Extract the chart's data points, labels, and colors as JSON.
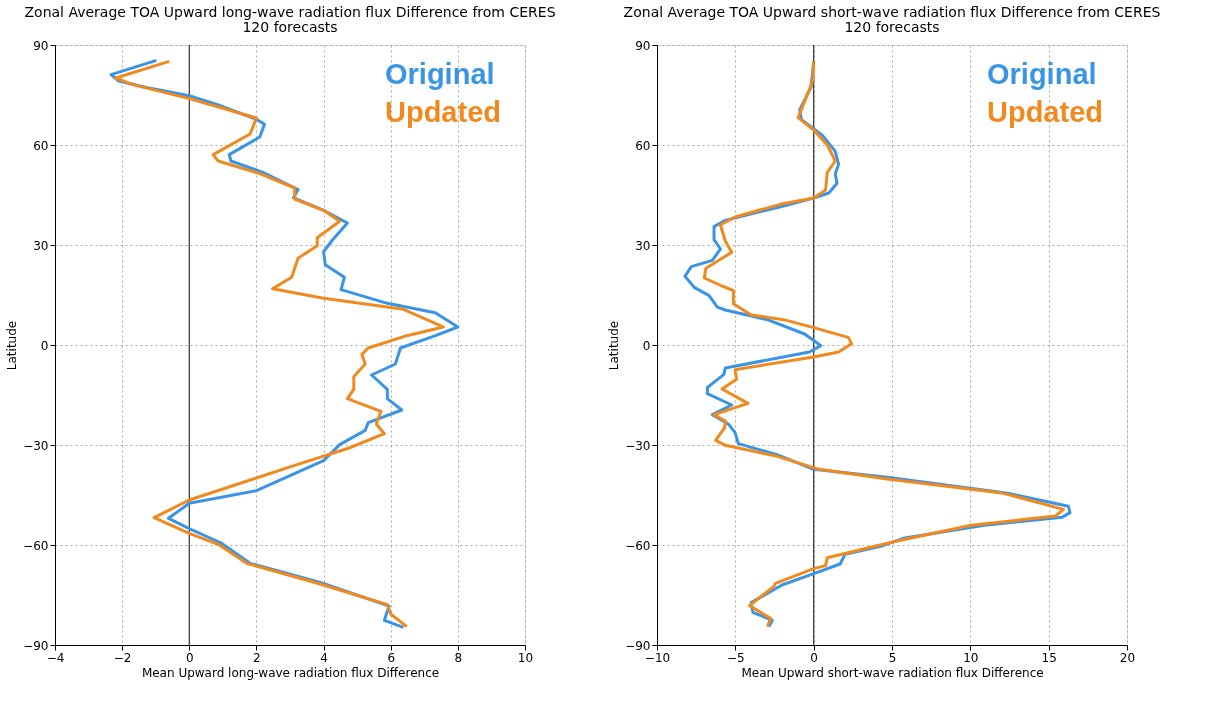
{
  "chart_data": [
    {
      "type": "line",
      "title": "Zonal Average TOA Upward long-wave radiation flux Difference from CERES",
      "subtitle": "120 forecasts",
      "xlabel": "Mean Upward long-wave radiation flux Difference",
      "ylabel": "Latitude",
      "orientation": "horizontal",
      "xlim": [
        -4,
        10
      ],
      "xticks": [
        -4,
        -2,
        0,
        2,
        4,
        6,
        8,
        10
      ],
      "ylim": [
        -90,
        90
      ],
      "yticks": [
        -90,
        -60,
        -30,
        0,
        30,
        60,
        90
      ],
      "grid": true,
      "legend": "top right",
      "marker": "none",
      "line_style": "solid",
      "ref_lines": [
        {
          "axis": "x",
          "value": 0,
          "color": "#333333"
        }
      ],
      "series": [
        {
          "name": "Original",
          "color": "#3a94e6",
          "x": [
            85.4,
            81.1,
            79.2,
            77.2,
            74.8,
            72,
            67.7,
            66.2,
            62.4,
            57.1,
            55.2,
            51.8,
            46.6,
            44.2,
            40.4,
            36.6,
            31.8,
            28,
            24.1,
            20.3,
            16.6,
            12.5,
            9.7,
            5.4,
            2.8,
            -0.9,
            -5.7,
            -9,
            -13.3,
            -16.1,
            -19.5,
            -23.3,
            -25.6,
            -29.9,
            -34.7,
            -43.7,
            -47.5,
            -52,
            -55.1,
            -59.4,
            -65.5,
            -71.2,
            -78.3,
            -82.6,
            -84.7
          ],
          "values": [
            -0.98,
            -2.33,
            -2.1,
            -1.24,
            0,
            0.86,
            2.0,
            2.24,
            2.1,
            1.19,
            1.24,
            2.19,
            3.24,
            3.1,
            4.0,
            4.71,
            4.29,
            4.0,
            4.05,
            4.62,
            4.52,
            5.9,
            7.33,
            8.0,
            7.33,
            6.29,
            6.14,
            5.43,
            5.9,
            5.9,
            6.33,
            5.33,
            5.24,
            4.48,
            4.0,
            2.0,
            0,
            -0.62,
            0,
            0.95,
            1.81,
            3.9,
            5.95,
            5.81,
            6.38
          ]
        },
        {
          "name": "Updated",
          "color": "#f08a1e",
          "x": [
            85.1,
            80.1,
            78.2,
            73.9,
            68.1,
            63.3,
            57.1,
            55.2,
            51.4,
            47.1,
            43.8,
            40.4,
            37.1,
            32.2,
            29.8,
            26,
            20.3,
            16.9,
            14,
            10.7,
            5.4,
            2.8,
            -0.9,
            -2.8,
            -5.7,
            -9.5,
            -13.3,
            -16.1,
            -19.9,
            -23.7,
            -26.6,
            -30.9,
            -36.1,
            -39.9,
            -46.5,
            -51.8,
            -56.5,
            -59.8,
            -65.5,
            -71.7,
            -77.9,
            -80.7,
            -84.5
          ],
          "values": [
            -0.6,
            -2.19,
            -1.71,
            0,
            2.0,
            1.81,
            0.71,
            0.86,
            2.1,
            3.14,
            3.14,
            4.0,
            4.48,
            3.81,
            3.81,
            3.24,
            3.05,
            2.48,
            4.0,
            6.38,
            7.57,
            6.48,
            5.33,
            5.14,
            5.24,
            4.9,
            4.9,
            4.71,
            5.71,
            5.57,
            5.81,
            4.76,
            3.14,
            2.0,
            0,
            -1.05,
            0,
            0.86,
            1.71,
            3.9,
            5.9,
            6.0,
            6.48
          ]
        }
      ]
    },
    {
      "type": "line",
      "title": "Zonal Average TOA Upward short-wave radiation flux Difference from CERES",
      "subtitle": "120 forecasts",
      "xlabel": "Mean Upward short-wave radiation flux Difference",
      "ylabel": "Latitude",
      "orientation": "horizontal",
      "xlim": [
        -10,
        20
      ],
      "xticks": [
        -10,
        -5,
        0,
        5,
        10,
        15,
        20
      ],
      "ylim": [
        -90,
        90
      ],
      "yticks": [
        -90,
        -60,
        -30,
        0,
        30,
        60,
        90
      ],
      "grid": true,
      "legend": "top right",
      "marker": "none",
      "line_style": "solid",
      "ref_lines": [
        {
          "axis": "x",
          "value": 0,
          "color": "#333333"
        }
      ],
      "series": [
        {
          "name": "Original",
          "color": "#3a94e6",
          "x": [
            85,
            77.3,
            70.6,
            67.7,
            62.9,
            58.1,
            54.2,
            51.3,
            48.5,
            45.6,
            44.1,
            41.7,
            37.4,
            35.5,
            31.6,
            28.8,
            25.4,
            23.5,
            20.6,
            17.2,
            14.8,
            11.4,
            10.5,
            7.6,
            3.3,
            0.9,
            -0.2,
            -2.1,
            -6.9,
            -8.9,
            -12.7,
            -14.6,
            -18,
            -20.9,
            -23.8,
            -26.2,
            -29.6,
            -32.9,
            -37.3,
            -39.7,
            -44.5,
            -48.4,
            -50.3,
            -51.7,
            -54.1,
            -58,
            -60.4,
            -62.8,
            -65.7,
            -68.6,
            -72,
            -77.3,
            -80.2,
            -82.6,
            -84.5
          ],
          "values": [
            0,
            -0.17,
            -0.89,
            -0.79,
            0.56,
            1.38,
            1.59,
            1.38,
            1.49,
            0.97,
            0,
            -1.92,
            -5.64,
            -6.36,
            -6.36,
            -5.95,
            -6.47,
            -7.81,
            -8.22,
            -7.6,
            -6.67,
            -6.16,
            -5.64,
            -2.95,
            -0.58,
            0.14,
            0.45,
            -0.27,
            -5.64,
            -5.74,
            -6.78,
            -6.78,
            -5.23,
            -6.47,
            -5.43,
            -5.02,
            -4.81,
            -2.33,
            0,
            4.69,
            12.4,
            16.26,
            16.36,
            15.85,
            10.89,
            5.72,
            4.28,
            2.0,
            1.69,
            0,
            -2.02,
            -3.99,
            -3.88,
            -2.64,
            -2.84
          ]
        },
        {
          "name": "Updated",
          "color": "#f08a1e",
          "x": [
            85,
            79.2,
            68.2,
            64.3,
            60,
            55.2,
            51.8,
            46.5,
            44.1,
            42.2,
            38.4,
            36,
            31.2,
            27.8,
            23,
            20.1,
            17.7,
            16.3,
            12.4,
            9,
            7.6,
            5.2,
            2.3,
            0.4,
            -2.1,
            -3.6,
            -7.4,
            -10.3,
            -13.2,
            -17.5,
            -20.9,
            -22.8,
            -24.8,
            -28.6,
            -30.1,
            -33.4,
            -37.3,
            -40.2,
            -44.5,
            -49.3,
            -51.3,
            -54.1,
            -59,
            -63.8,
            -66.2,
            -67.1,
            -71.5,
            -72.4,
            -78.2,
            -82,
            -84.5
          ],
          "values": [
            0,
            -0.06,
            -0.99,
            0.04,
            0.87,
            1.38,
            0.87,
            0.76,
            0,
            -2.13,
            -5.02,
            -5.95,
            -5.64,
            -5.23,
            -6.88,
            -6.98,
            -5.85,
            -5.12,
            -5.12,
            -3.99,
            -1.92,
            0,
            2.21,
            2.42,
            1.59,
            0,
            -5.02,
            -4.92,
            -5.85,
            -4.19,
            -6.36,
            -5.64,
            -5.68,
            -6.26,
            -5.64,
            -2.33,
            0.35,
            4.69,
            12.13,
            15.95,
            15.43,
            10.06,
            5.1,
            0.87,
            0.76,
            0,
            -2.44,
            -2.54,
            -4.09,
            -2.75,
            -2.95
          ]
        }
      ]
    }
  ]
}
